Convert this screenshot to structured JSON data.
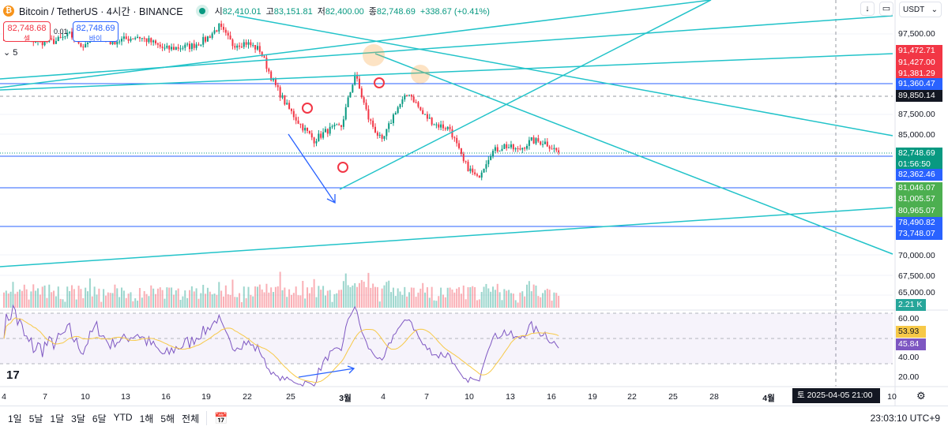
{
  "header": {
    "symbol": "Bitcoin / TetherUS · 4시간 · BINANCE",
    "open_label": "시",
    "open": "82,410.01",
    "high_label": "고",
    "high": "83,151.81",
    "low_label": "저",
    "low": "82,400.00",
    "close_label": "종",
    "close": "82,748.69",
    "change": "+338.67 (+0.41%)"
  },
  "trade": {
    "sell_price": "82,748.68",
    "sell_label": "셀",
    "qty": "0.01",
    "buy_price": "82,748.69",
    "buy_label": "바이",
    "indicators_count": "5"
  },
  "toolbar": {
    "currency": "USDT",
    "scroll_icon": "arrow-down-icon",
    "layout_icon": "rectangle-icon"
  },
  "price_axis": [
    "97,500.00",
    "87,500.00",
    "85,000.00",
    "70,000.00",
    "67,500.00",
    "65,000.00"
  ],
  "rsi_axis": [
    "60.00",
    "40.00",
    "20.00"
  ],
  "price_labels": [
    {
      "text": "91,472.71",
      "color": "#f23645"
    },
    {
      "text": "91,427.00",
      "color": "#f23645"
    },
    {
      "text": "91,381.29",
      "color": "#f23645"
    },
    {
      "text": "91,360.47",
      "color": "#2962ff"
    },
    {
      "text": "89,850.14",
      "color": "#131722"
    },
    {
      "text": "82,748.69",
      "color": "#089981"
    },
    {
      "text": "01:56:50",
      "color": "#089981"
    },
    {
      "text": "82,362.46",
      "color": "#2962ff"
    },
    {
      "text": "81,046.07",
      "color": "#4caf50"
    },
    {
      "text": "81,005.57",
      "color": "#4caf50"
    },
    {
      "text": "80,965.07",
      "color": "#4caf50"
    },
    {
      "text": "78,490.82",
      "color": "#2962ff"
    },
    {
      "text": "73,748.07",
      "color": "#2962ff"
    }
  ],
  "volume_label": "2.21 K",
  "rsi_value": "45.84",
  "rsi_ma_value": "53.93",
  "time_axis": [
    "4",
    "7",
    "10",
    "13",
    "16",
    "19",
    "22",
    "25",
    "3월",
    "4",
    "7",
    "10",
    "13",
    "16",
    "19",
    "22",
    "25",
    "28",
    "4월"
  ],
  "crosshair_time": "토 2025-04-05   21:00",
  "time_axis_last": "10",
  "ranges": [
    "1일",
    "5날",
    "1달",
    "3달",
    "6달",
    "YTD",
    "1해",
    "5해",
    "전체"
  ],
  "clock": "23:03:10 UTC+9",
  "colors": {
    "up": "#089981",
    "down": "#f23645",
    "trend": "#22c3c9",
    "hline": "#2962ff",
    "rsi": "#7e57c2",
    "rsi_ma": "#f7c948"
  },
  "chart_data": {
    "type": "candlestick",
    "timeframe": "4h",
    "start": "Feb 4",
    "daily_close": [
      97000,
      97600,
      96800,
      96500,
      96600,
      97400,
      96000,
      97800,
      96500,
      96800,
      97200,
      96500,
      95600,
      95800,
      96000,
      96800,
      98400,
      96200,
      96400,
      95500,
      91500,
      88500,
      86200,
      84300,
      85500,
      86000,
      92500,
      87000,
      84000,
      88000,
      90200,
      87500,
      86200,
      85700,
      81500,
      79500,
      82700,
      83600,
      83000,
      84200,
      84000,
      82748
    ]
  }
}
